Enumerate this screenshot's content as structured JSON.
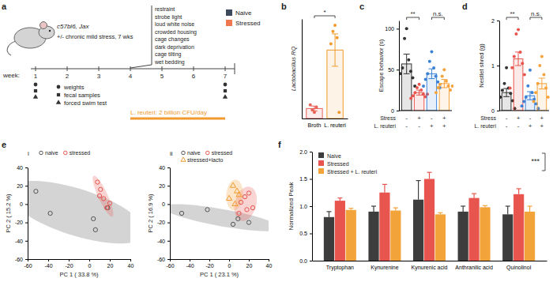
{
  "panel_a": {
    "panel": "a",
    "strain": "c57bl6, Jax",
    "condition": "+/- chronic mild stress, 7 wks",
    "legend": [
      {
        "name": "Naive",
        "color": "#3d4a5c"
      },
      {
        "name": "Stressed",
        "color": "#f0774f"
      }
    ],
    "stressors": [
      "restraint",
      "strobe light",
      "loud white noise",
      "crowded housing",
      "cage changes",
      "dark deprivation",
      "cage tilting",
      "wet bedding"
    ],
    "week_label": "week:",
    "weeks": [
      1,
      2,
      3,
      4,
      5,
      6,
      7
    ],
    "sampling_weeks": [
      1,
      7
    ],
    "measures": [
      {
        "marker": "circle",
        "label": "weights"
      },
      {
        "marker": "square",
        "label": "fecal samples"
      },
      {
        "marker": "triangle",
        "label": "forced swim test"
      }
    ],
    "treatment": "L. reuteri: 2 billion CFU/day",
    "treatment_weeks": [
      4,
      7
    ],
    "treatment_color": "#f29a2e"
  },
  "chart_data": [
    {
      "panel": "b",
      "type": "bar",
      "categories": [
        "Broth",
        "L. reuteri"
      ],
      "y_label": "Lactobacillus RQ",
      "ylim": [
        0,
        8
      ],
      "tick_labels": "x",
      "colors": [
        "#e8635a",
        "#f29a2e"
      ],
      "values": [
        0.8,
        5.5
      ],
      "errors": [
        0.2,
        1.3
      ],
      "points": [
        [
          0.5,
          0.7,
          0.9,
          1.1
        ],
        [
          7.5,
          7.0,
          6.5,
          6.0,
          0.5
        ]
      ],
      "annotations": [
        {
          "text": "*",
          "between": [
            0,
            1
          ]
        }
      ]
    },
    {
      "panel": "c",
      "type": "bar",
      "y_label": "Escape behavior (s)",
      "ylim": [
        0,
        110
      ],
      "yticks": [
        0,
        50,
        100
      ],
      "x_table": {
        "row_labels": [
          "Stress",
          "L. reuteri"
        ],
        "cells": [
          [
            "-",
            "+",
            "-",
            "+"
          ],
          [
            "-",
            "-",
            "+",
            "+"
          ]
        ]
      },
      "colors": [
        "#333333",
        "#e8554e",
        "#3b82d6",
        "#f5a33c"
      ],
      "values": [
        57,
        22,
        45,
        33
      ],
      "errors": [
        12,
        3,
        6,
        5
      ],
      "points": [
        [
          100,
          88,
          62,
          52,
          48,
          45,
          40,
          38,
          30
        ],
        [
          32,
          28,
          25,
          22,
          20,
          18,
          17,
          15,
          20
        ],
        [
          72,
          60,
          52,
          45,
          42,
          38,
          35,
          30,
          28
        ],
        [
          50,
          42,
          36,
          32,
          30,
          28,
          25,
          22,
          30
        ]
      ],
      "annotations": [
        {
          "text": "**",
          "between": [
            0,
            1
          ]
        },
        {
          "text": "n.s.",
          "between": [
            2,
            3
          ]
        }
      ]
    },
    {
      "panel": "d",
      "type": "bar",
      "y_label": "Nestlet shred (g)",
      "ylim": [
        0,
        2
      ],
      "yticks": [
        0,
        1,
        2
      ],
      "x_table": {
        "row_labels": [
          "Stress",
          "L. reuteri"
        ],
        "cells": [
          [
            "-",
            "+",
            "-",
            "+"
          ],
          [
            "-",
            "-",
            "+",
            "+"
          ]
        ]
      },
      "colors": [
        "#333333",
        "#e8554e",
        "#3b82d6",
        "#f5a33c"
      ],
      "values": [
        0.4,
        1.15,
        0.33,
        0.6
      ],
      "errors": [
        0.09,
        0.15,
        0.09,
        0.12
      ],
      "points": [
        [
          0.95,
          0.6,
          0.5,
          0.45,
          0.38,
          0.3,
          0.22,
          0.1,
          0.05
        ],
        [
          1.8,
          1.7,
          1.3,
          1.2,
          1.05,
          0.95,
          0.8,
          0.5
        ],
        [
          0.9,
          0.55,
          0.4,
          0.3,
          0.25,
          0.2,
          0.15,
          0.1,
          0.05
        ],
        [
          1.2,
          1.0,
          0.8,
          0.6,
          0.5,
          0.4,
          0.3,
          0.2
        ]
      ],
      "annotations": [
        {
          "text": "**",
          "between": [
            0,
            1
          ]
        },
        {
          "text": "n.s.",
          "between": [
            2,
            3
          ]
        }
      ]
    },
    {
      "panel": "e",
      "subpanel": "i",
      "type": "scatter",
      "x_label": "PC 1 ( 33.8 %)",
      "y_label": "PC 2 ( 15.2 %)",
      "xlim": [
        -60,
        40
      ],
      "xticks": [
        -60,
        -40,
        -20,
        0,
        20,
        40
      ],
      "ylim": [
        -60,
        40
      ],
      "yticks": [
        -60,
        -40,
        -20,
        0,
        20,
        40
      ],
      "series": [
        {
          "name": "naive",
          "color": "#555555",
          "marker": "circle",
          "x": [
            -52,
            -38,
            4,
            6,
            18
          ],
          "y": [
            14,
            -10,
            -16,
            -28,
            -4
          ]
        },
        {
          "name": "stressed",
          "color": "#e8554e",
          "marker": "circle",
          "x": [
            8,
            11,
            14,
            17,
            20,
            10
          ],
          "y": [
            24,
            16,
            6,
            -4,
            1,
            9
          ]
        }
      ]
    },
    {
      "subpanel": "ii",
      "type": "scatter",
      "x_label": "PC 1 ( 23.1 %)",
      "y_label": "PC 2 ( 16.9 %)",
      "xlim": [
        -60,
        40
      ],
      "xticks": [
        -60,
        -40,
        -20,
        0,
        20,
        40
      ],
      "ylim": [
        -60,
        40
      ],
      "yticks": [
        -60,
        -40,
        -20,
        0,
        20,
        40
      ],
      "series": [
        {
          "name": "naive",
          "color": "#555555",
          "marker": "circle",
          "x": [
            -48,
            -22,
            4,
            9,
            20
          ],
          "y": [
            -10,
            -6,
            -22,
            -16,
            -20
          ]
        },
        {
          "name": "stressed",
          "color": "#e8554e",
          "marker": "circle",
          "x": [
            12,
            16,
            20,
            24,
            10,
            18
          ],
          "y": [
            2,
            8,
            12,
            -4,
            -10,
            -6
          ]
        },
        {
          "name": "stressed+lacto",
          "color": "#f29a2e",
          "marker": "triangle",
          "x": [
            4,
            8,
            0,
            10,
            6
          ],
          "y": [
            20,
            14,
            6,
            10,
            0
          ]
        }
      ]
    },
    {
      "panel": "f",
      "type": "bar",
      "y_label": "Normalized Peak",
      "categories": [
        "Tryptophan",
        "Kynurenine",
        "Kynurenic acid",
        "Anthranilic acid",
        "Quinolinol"
      ],
      "ylim": [
        0,
        2
      ],
      "yticks": [
        {
          "value": 0,
          "label": "0.0"
        },
        {
          "value": 0.5,
          "label": "0.5"
        },
        {
          "value": 1,
          "label": "1.0"
        },
        {
          "value": 1.5,
          "label": "1.5"
        },
        {
          "value": 2,
          "label": "2.0"
        }
      ],
      "legend": "top-left",
      "series": [
        {
          "name": "Naive",
          "color": "#3d3d3d",
          "values": [
            0.8,
            0.9,
            1.12,
            0.9,
            0.85
          ],
          "errors": [
            0.1,
            0.1,
            0.35,
            0.1,
            0.15
          ]
        },
        {
          "name": "Stressed",
          "color": "#e8554e",
          "values": [
            1.1,
            1.25,
            1.5,
            1.15,
            1.22
          ],
          "errors": [
            0.05,
            0.15,
            0.12,
            0.08,
            0.1
          ]
        },
        {
          "name": "Stressed + L. reuteri",
          "color": "#f2a33a",
          "values": [
            0.93,
            0.92,
            0.85,
            0.98,
            0.9
          ],
          "errors": [
            0.03,
            0.05,
            0.03,
            0.03,
            0.1
          ]
        }
      ],
      "annotations": [
        {
          "text": "***"
        }
      ]
    }
  ]
}
